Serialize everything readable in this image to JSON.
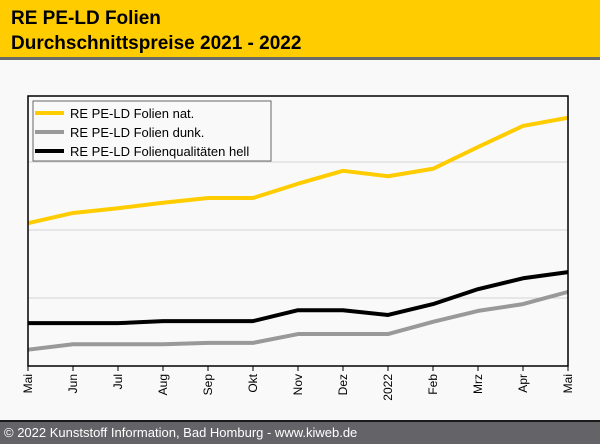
{
  "header": {
    "title_line1": "RE PE-LD Folien",
    "title_line2": "Durchschnittspreise 2021 - 2022"
  },
  "footer": {
    "text": "© 2022 Kunststoff Information, Bad Homburg - www.kiweb.de"
  },
  "chart_data": {
    "type": "line",
    "title": "RE PE-LD Folien Durchschnittspreise 2021 - 2022",
    "xlabel": "",
    "ylabel": "",
    "x": [
      "Mai",
      "Jun",
      "Jul",
      "Aug",
      "Sep",
      "Okt",
      "Nov",
      "Dez",
      "2022",
      "Feb",
      "Mrz",
      "Apr",
      "Mai"
    ],
    "ylim": [
      0,
      3.97
    ],
    "y_unit_note": "relative index (no y-axis labels shown); gridline spacing = 1",
    "gridlines_y": [
      1,
      2,
      3
    ],
    "grid": true,
    "legend_position": "top-left",
    "series": [
      {
        "name": "RE PE-LD Folien nat.",
        "color": "#ffcc00",
        "values": [
          2.1,
          2.25,
          2.32,
          2.4,
          2.47,
          2.47,
          2.68,
          2.87,
          2.79,
          2.9,
          3.22,
          3.53,
          3.65
        ]
      },
      {
        "name": "RE PE-LD Folien dunk.",
        "color": "#999999",
        "values": [
          0.24,
          0.32,
          0.32,
          0.32,
          0.34,
          0.34,
          0.47,
          0.47,
          0.47,
          0.65,
          0.81,
          0.91,
          1.09
        ]
      },
      {
        "name": "RE PE-LD Folienqualitäten hell",
        "color": "#000000",
        "values": [
          0.63,
          0.63,
          0.63,
          0.66,
          0.66,
          0.66,
          0.82,
          0.82,
          0.75,
          0.91,
          1.13,
          1.29,
          1.38
        ]
      }
    ]
  }
}
